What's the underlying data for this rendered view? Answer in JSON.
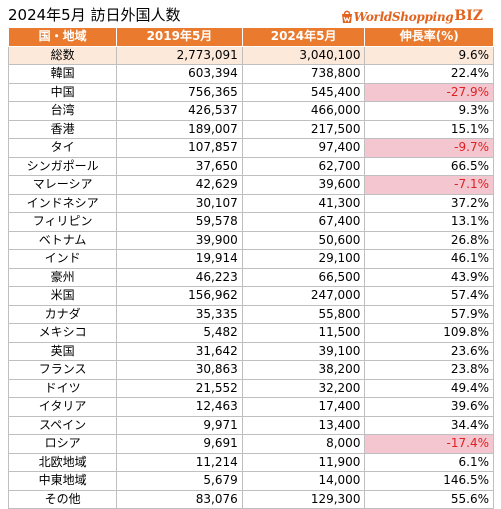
{
  "title": "2024年5月 訪日外国人数",
  "logo": {
    "text": "WorldShopping",
    "suffix": "BIZ",
    "icon": "shopping-bag-icon",
    "color": "#e2631f"
  },
  "colors": {
    "header_bg": "#ea7a2e",
    "total_bg": "#fde9d9",
    "negative_bg": "#f4c7d0",
    "negative_text": "#e02020"
  },
  "table": {
    "headers": [
      "国・地域",
      "2019年5月",
      "2024年5月",
      "伸長率(%)"
    ],
    "rows": [
      {
        "region": "総数",
        "y2019": "2,773,091",
        "y2024": "3,040,100",
        "growth": "9.6%",
        "total": true
      },
      {
        "region": "韓国",
        "y2019": "603,394",
        "y2024": "738,800",
        "growth": "22.4%"
      },
      {
        "region": "中国",
        "y2019": "756,365",
        "y2024": "545,400",
        "growth": "-27.9%",
        "negative": true
      },
      {
        "region": "台湾",
        "y2019": "426,537",
        "y2024": "466,000",
        "growth": "9.3%"
      },
      {
        "region": "香港",
        "y2019": "189,007",
        "y2024": "217,500",
        "growth": "15.1%"
      },
      {
        "region": "タイ",
        "y2019": "107,857",
        "y2024": "97,400",
        "growth": "-9.7%",
        "negative": true
      },
      {
        "region": "シンガポール",
        "y2019": "37,650",
        "y2024": "62,700",
        "growth": "66.5%"
      },
      {
        "region": "マレーシア",
        "y2019": "42,629",
        "y2024": "39,600",
        "growth": "-7.1%",
        "negative": true
      },
      {
        "region": "インドネシア",
        "y2019": "30,107",
        "y2024": "41,300",
        "growth": "37.2%"
      },
      {
        "region": "フィリピン",
        "y2019": "59,578",
        "y2024": "67,400",
        "growth": "13.1%"
      },
      {
        "region": "ベトナム",
        "y2019": "39,900",
        "y2024": "50,600",
        "growth": "26.8%"
      },
      {
        "region": "インド",
        "y2019": "19,914",
        "y2024": "29,100",
        "growth": "46.1%"
      },
      {
        "region": "豪州",
        "y2019": "46,223",
        "y2024": "66,500",
        "growth": "43.9%"
      },
      {
        "region": "米国",
        "y2019": "156,962",
        "y2024": "247,000",
        "growth": "57.4%"
      },
      {
        "region": "カナダ",
        "y2019": "35,335",
        "y2024": "55,800",
        "growth": "57.9%"
      },
      {
        "region": "メキシコ",
        "y2019": "5,482",
        "y2024": "11,500",
        "growth": "109.8%"
      },
      {
        "region": "英国",
        "y2019": "31,642",
        "y2024": "39,100",
        "growth": "23.6%"
      },
      {
        "region": "フランス",
        "y2019": "30,863",
        "y2024": "38,200",
        "growth": "23.8%"
      },
      {
        "region": "ドイツ",
        "y2019": "21,552",
        "y2024": "32,200",
        "growth": "49.4%"
      },
      {
        "region": "イタリア",
        "y2019": "12,463",
        "y2024": "17,400",
        "growth": "39.6%"
      },
      {
        "region": "スペイン",
        "y2019": "9,971",
        "y2024": "13,400",
        "growth": "34.4%"
      },
      {
        "region": "ロシア",
        "y2019": "9,691",
        "y2024": "8,000",
        "growth": "-17.4%",
        "negative": true
      },
      {
        "region": "北欧地域",
        "y2019": "11,214",
        "y2024": "11,900",
        "growth": "6.1%"
      },
      {
        "region": "中東地域",
        "y2019": "5,679",
        "y2024": "14,000",
        "growth": "146.5%"
      },
      {
        "region": "その他",
        "y2019": "83,076",
        "y2024": "129,300",
        "growth": "55.6%"
      }
    ]
  }
}
